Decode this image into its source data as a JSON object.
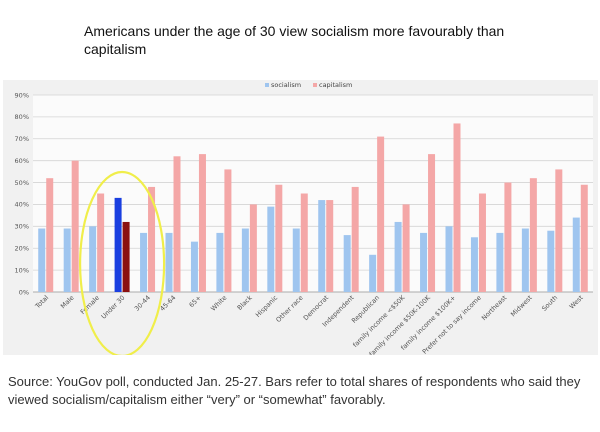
{
  "headline": "Americans under the age of 30 view socialism more favourably than capitalism",
  "source_note": "Source: YouGov poll, conducted Jan. 25-27. Bars refer to total shares of respondents who said they viewed socialism/capitalism either “very” or “somewhat” favorably.",
  "chart_data": {
    "type": "bar",
    "title": "",
    "xlabel": "",
    "ylabel": "",
    "ylim": [
      0,
      90
    ],
    "yticks": [
      "0%",
      "10%",
      "20%",
      "30%",
      "40%",
      "50%",
      "60%",
      "70%",
      "80%",
      "90%"
    ],
    "grid": true,
    "legend": "top-center",
    "categories": [
      "Total",
      "Male",
      "Female",
      "Under 30",
      "30-44",
      "45-64",
      "65+",
      "White",
      "Black",
      "Hispanic",
      "Other race",
      "Democrat",
      "Independent",
      "Republican",
      "family income <$50K",
      "family income $50K-100K",
      "family income $100K+",
      "Prefer not to say income",
      "Northeast",
      "Midwest",
      "South",
      "West"
    ],
    "series": [
      {
        "name": "socialism",
        "color": "#9fc5ef",
        "values": [
          29,
          29,
          30,
          43,
          27,
          27,
          23,
          27,
          29,
          39,
          29,
          42,
          26,
          17,
          32,
          27,
          30,
          25,
          27,
          29,
          28,
          34
        ]
      },
      {
        "name": "capitalism",
        "color": "#f4a7a7",
        "values": [
          52,
          60,
          45,
          32,
          48,
          62,
          63,
          56,
          40,
          49,
          45,
          42,
          48,
          71,
          40,
          63,
          77,
          45,
          50,
          52,
          56,
          49
        ]
      }
    ],
    "highlight": {
      "category": "Under 30",
      "colors": [
        "#1a3fe0",
        "#8b1010"
      ],
      "ring_color": "#f0ee4a"
    }
  }
}
